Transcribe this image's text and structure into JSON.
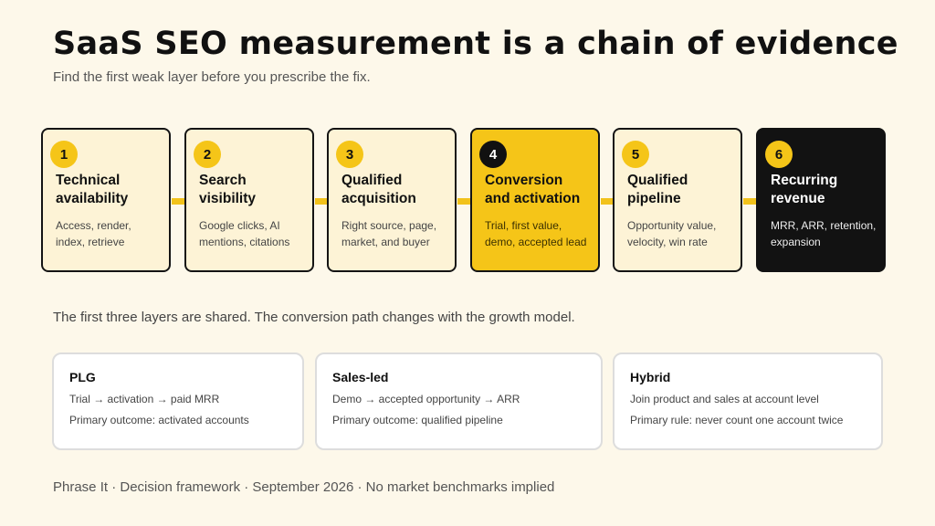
{
  "header": {
    "title": "SaaS SEO measurement is a chain of evidence",
    "subtitle": "Find the first weak layer before you prescribe the fix."
  },
  "chain": [
    {
      "number": "1",
      "title": "Technical availability",
      "description": "Access, render, index, retrieve",
      "style": "default"
    },
    {
      "number": "2",
      "title": "Search visibility",
      "description": "Google clicks, AI mentions, citations",
      "style": "default"
    },
    {
      "number": "3",
      "title": "Qualified acquisition",
      "description": "Right source, page, market, and buyer",
      "style": "default"
    },
    {
      "number": "4",
      "title": "Conversion and activation",
      "description": "Trial, first value, demo, accepted lead",
      "style": "highlight"
    },
    {
      "number": "5",
      "title": "Qualified pipeline",
      "description": "Opportunity value, velocity, win rate",
      "style": "default"
    },
    {
      "number": "6",
      "title": "Recurring revenue",
      "description": "MRR, ARR, retention, expansion",
      "style": "dark"
    }
  ],
  "note": "The first three layers are shared. The conversion path changes with the growth model.",
  "models": [
    {
      "name": "PLG",
      "path": "Trial → activation → paid MRR",
      "outcome": "Primary outcome: activated accounts"
    },
    {
      "name": "Sales-led",
      "path": "Demo → accepted opportunity → ARR",
      "outcome": "Primary outcome: qualified pipeline"
    },
    {
      "name": "Hybrid",
      "path": "Join product and sales at account level",
      "outcome": "Primary rule: never count one account twice"
    }
  ],
  "footer": "Phrase It · Decision framework · September 2026 · No market benchmarks implied",
  "colors": {
    "background": "#fdf8ea",
    "card": "#fdf3d6",
    "accent": "#f5c518",
    "dark": "#121212"
  }
}
